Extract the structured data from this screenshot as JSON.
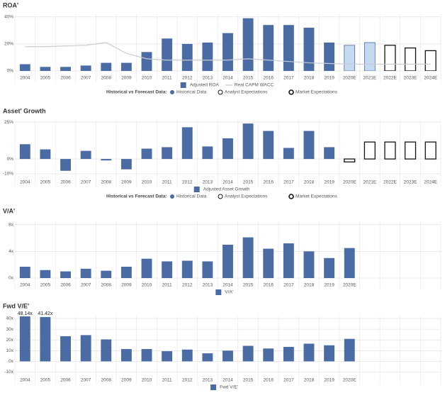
{
  "chart_data": [
    {
      "type": "bar",
      "title": "ROA'",
      "categories": [
        "2004",
        "2005",
        "2006",
        "2007",
        "2008",
        "2009",
        "2010",
        "2011",
        "2012",
        "2013",
        "2014",
        "2015",
        "2016",
        "2017",
        "2018",
        "2019",
        "2020E",
        "2021E",
        "2022E",
        "2023E",
        "2024E"
      ],
      "series": [
        {
          "name": "Adjusted ROA",
          "type": "bar",
          "color": "#4a6ba3",
          "values": [
            5,
            3,
            3,
            4,
            6,
            6,
            14,
            24,
            20,
            21,
            28,
            39,
            34,
            34,
            32,
            21,
            19,
            21,
            19,
            17,
            15
          ],
          "bar_colors": [
            "#4a6ba3",
            "#4a6ba3",
            "#4a6ba3",
            "#4a6ba3",
            "#4a6ba3",
            "#4a6ba3",
            "#4a6ba3",
            "#4a6ba3",
            "#4a6ba3",
            "#4a6ba3",
            "#4a6ba3",
            "#4a6ba3",
            "#4a6ba3",
            "#4a6ba3",
            "#4a6ba3",
            "#4a6ba3",
            "#c5d9f0",
            "#c5d9f0",
            "#ffffff",
            "#ffffff",
            "#ffffff"
          ]
        },
        {
          "name": "Real CAPM WACC",
          "type": "line",
          "color": "#c9ccd3",
          "values": [
            18,
            18,
            18.5,
            19,
            21,
            13,
            9,
            8,
            8,
            8,
            8,
            9,
            8,
            7,
            6,
            5.5,
            5,
            5,
            5,
            5,
            5
          ]
        }
      ],
      "ylim": [
        0,
        42
      ],
      "yticks": [
        {
          "value": 0,
          "label": "0%"
        },
        {
          "value": 20,
          "label": "20%"
        },
        {
          "value": 40,
          "label": "40%"
        }
      ],
      "grid": true,
      "forecast_legend": {
        "title": "Historical vs Forecast Data:",
        "items": [
          "Historical Data",
          "Analyst Expectations",
          "Market Expectations"
        ]
      }
    },
    {
      "type": "bar",
      "title": "Asset' Growth",
      "categories": [
        "2004",
        "2005",
        "2006",
        "2007",
        "2008",
        "2009",
        "2010",
        "2011",
        "2012",
        "2013",
        "2014",
        "2015",
        "2016",
        "2017",
        "2018",
        "2019",
        "2020E",
        "2021E",
        "2022E",
        "2023E",
        "2024E"
      ],
      "series": [
        {
          "name": "Adjusted Asset Growth",
          "type": "bar",
          "color": "#4a6ba3",
          "values": [
            10,
            6.5,
            -8,
            5.5,
            -1,
            -7,
            7,
            8,
            21.5,
            8.5,
            14,
            24,
            19,
            7.5,
            19,
            8,
            -2,
            11.5,
            11.5,
            11.5,
            11.5
          ],
          "bar_colors": [
            "#4a6ba3",
            "#4a6ba3",
            "#4a6ba3",
            "#4a6ba3",
            "#4a6ba3",
            "#4a6ba3",
            "#4a6ba3",
            "#4a6ba3",
            "#4a6ba3",
            "#4a6ba3",
            "#4a6ba3",
            "#4a6ba3",
            "#4a6ba3",
            "#4a6ba3",
            "#4a6ba3",
            "#4a6ba3",
            "#ffffff",
            "#ffffff",
            "#ffffff",
            "#ffffff",
            "#ffffff"
          ]
        }
      ],
      "ylim": [
        -11,
        26
      ],
      "yticks": [
        {
          "value": -10,
          "label": "-10%"
        },
        {
          "value": 0,
          "label": "0%"
        },
        {
          "value": 25,
          "label": "25%"
        }
      ],
      "grid": true,
      "forecast_legend": {
        "title": "Historical vs Forecast Data:",
        "items": [
          "Historical Data",
          "Analyst Expectations",
          "Market Expectations"
        ]
      }
    },
    {
      "type": "bar",
      "title": "V/A'",
      "categories": [
        "2004",
        "2005",
        "2006",
        "2007",
        "2008",
        "2009",
        "2010",
        "2011",
        "2012",
        "2013",
        "2014",
        "2015",
        "2016",
        "2017",
        "2018",
        "2019",
        "2020E",
        null,
        null,
        null,
        null
      ],
      "series": [
        {
          "name": "V/A'",
          "type": "bar",
          "color": "#4a6ba3",
          "values": [
            1.7,
            1.2,
            1.0,
            1.4,
            1.1,
            1.7,
            2.9,
            2.5,
            2.6,
            2.5,
            5.0,
            6.1,
            4.4,
            5.2,
            4.0,
            3.0,
            4.5,
            null,
            null,
            null,
            null
          ]
        }
      ],
      "ylim": [
        0,
        8.5
      ],
      "yticks": [
        {
          "value": 0,
          "label": "0x"
        },
        {
          "value": 4,
          "label": "4x"
        },
        {
          "value": 8,
          "label": "8x"
        }
      ],
      "grid": true
    },
    {
      "type": "bar",
      "title": "Fwd V/E'",
      "categories": [
        "2004",
        "2005",
        "2006",
        "2007",
        "2008",
        "2009",
        "2010",
        "2011",
        "2012",
        "2013",
        "2014",
        "2015",
        "2016",
        "2017",
        "2018",
        "2019",
        "2020E",
        null,
        null,
        null,
        null
      ],
      "series": [
        {
          "name": "Fwd V/E'",
          "type": "bar",
          "color": "#4a6ba3",
          "values": [
            48.14,
            41.42,
            23.5,
            24.5,
            20.5,
            11.5,
            11.5,
            9.5,
            11,
            7.5,
            10,
            14.5,
            12,
            13.5,
            16.5,
            15,
            21,
            null,
            null,
            null,
            null
          ],
          "value_labels": [
            "48.14x",
            "41.42x",
            null,
            null,
            null,
            null,
            null,
            null,
            null,
            null,
            null,
            null,
            null,
            null,
            null,
            null,
            null,
            null,
            null,
            null,
            null
          ]
        }
      ],
      "ylim": [
        -11,
        42
      ],
      "yticks": [
        {
          "value": -10,
          "label": "-10x"
        },
        {
          "value": 0,
          "label": "0x"
        },
        {
          "value": 10,
          "label": "10x"
        },
        {
          "value": 20,
          "label": "20x"
        },
        {
          "value": 30,
          "label": "30x"
        },
        {
          "value": 40,
          "label": "40x"
        }
      ],
      "grid": true
    }
  ]
}
